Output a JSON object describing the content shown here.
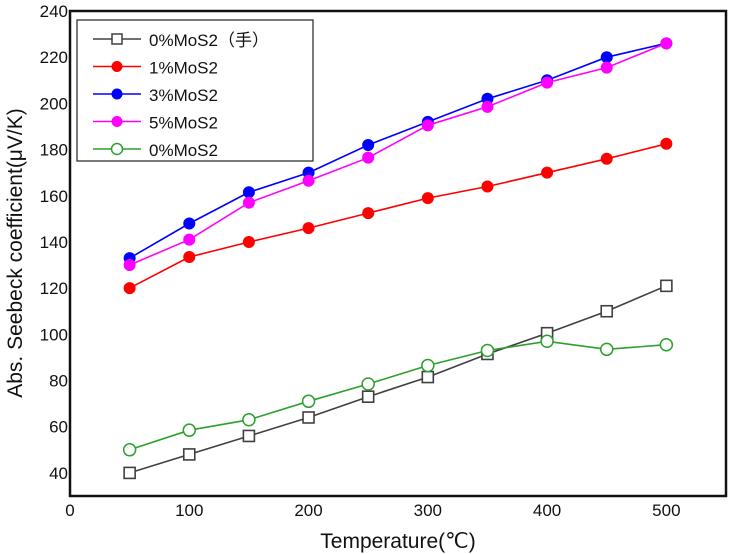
{
  "chart_data": {
    "type": "line",
    "title": "",
    "xlabel": "Temperature(℃)",
    "ylabel": "Abs. Seebeck coefficient(μV/K)",
    "xlim": [
      0,
      550
    ],
    "ylim": [
      30,
      240
    ],
    "x_ticks": [
      0,
      100,
      200,
      300,
      400,
      500
    ],
    "y_ticks": [
      40,
      60,
      80,
      100,
      120,
      140,
      160,
      180,
      200,
      220,
      240
    ],
    "grid": false,
    "legend_position": "top-left",
    "x": [
      50,
      100,
      150,
      200,
      250,
      300,
      350,
      400,
      450,
      500
    ],
    "series": [
      {
        "name": "0%MoS2（手）",
        "color": "#404040",
        "marker": "open-square",
        "values": [
          40,
          48,
          56,
          64,
          73,
          81.5,
          91.5,
          100.5,
          110,
          121
        ]
      },
      {
        "name": "1%MoS2",
        "color": "#ff0000",
        "marker": "filled-circle",
        "values": [
          120,
          133.5,
          140,
          146,
          152.5,
          159,
          164,
          170,
          176,
          182.5
        ]
      },
      {
        "name": "3%MoS2",
        "color": "#0000ff",
        "marker": "filled-circle",
        "values": [
          133,
          148,
          161.5,
          170,
          182,
          192,
          202,
          210,
          220,
          226
        ]
      },
      {
        "name": "5%MoS2",
        "color": "#ff00ff",
        "marker": "filled-circle",
        "values": [
          130,
          141,
          157,
          166.5,
          176.5,
          190.5,
          198.5,
          209,
          215.5,
          226
        ]
      },
      {
        "name": "0%MoS2",
        "color": "#2ca02c",
        "marker": "open-circle",
        "values": [
          50,
          58.5,
          63,
          71,
          78.5,
          86.5,
          93,
          97,
          93.5,
          95.5
        ]
      }
    ]
  }
}
